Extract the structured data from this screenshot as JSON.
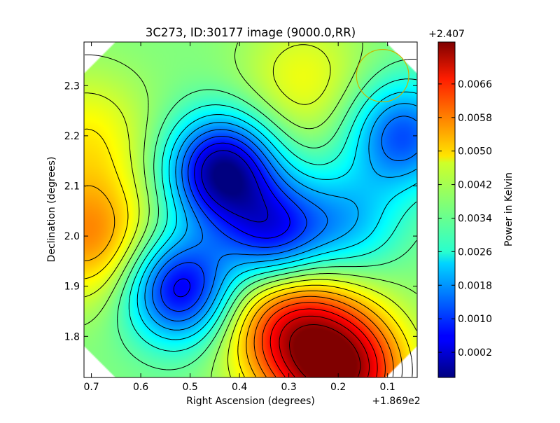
{
  "chart_data": {
    "type": "heatmap",
    "title": "3C273, ID:30177 image (9000.0,RR)",
    "xlabel": "Right Ascension (degrees)",
    "ylabel": "Declination (degrees)",
    "x_offset_label": "+1.869e2",
    "xlim": [
      0.715,
      0.04
    ],
    "ylim": [
      1.718,
      2.387
    ],
    "x_ticks": [
      0.7,
      0.6,
      0.5,
      0.4,
      0.3,
      0.2,
      0.1
    ],
    "x_tick_labels": [
      "0.7",
      "0.6",
      "0.5",
      "0.4",
      "0.3",
      "0.2",
      "0.1"
    ],
    "y_ticks": [
      1.8,
      1.9,
      2.0,
      2.1,
      2.2,
      2.3
    ],
    "y_tick_labels": [
      "1.8",
      "1.9",
      "2.0",
      "2.1",
      "2.2",
      "2.3"
    ],
    "colorbar": {
      "label": "Power in Kelvin",
      "offset_label": "+2.407",
      "range": [
        -0.0004,
        0.0076
      ],
      "ticks": [
        0.0066,
        0.0058,
        0.005,
        0.0042,
        0.0034,
        0.0026,
        0.0018,
        0.001,
        0.0002
      ],
      "tick_labels": [
        "0.0066",
        "0.0058",
        "0.0050",
        "0.0042",
        "0.0034",
        "0.0026",
        "0.0018",
        "0.0010",
        "0.0002"
      ],
      "colormap": "jet"
    },
    "features": [
      {
        "kind": "minimum",
        "ra": 0.435,
        "dec": 2.13,
        "value": -0.0003
      },
      {
        "kind": "minimum",
        "ra": 0.52,
        "dec": 1.895,
        "value": 0.0004
      },
      {
        "kind": "minimum",
        "ra": 0.33,
        "dec": 2.005,
        "value": 0.0008
      },
      {
        "kind": "minimum",
        "ra": 0.07,
        "dec": 2.2,
        "value": 0.0012
      },
      {
        "kind": "minimum",
        "ra": 0.18,
        "dec": 2.03,
        "value": 0.0022
      },
      {
        "kind": "maximum",
        "ra": 0.19,
        "dec": 1.73,
        "value": 0.0072
      },
      {
        "kind": "maximum",
        "ra": 0.3,
        "dec": 1.82,
        "value": 0.0062
      },
      {
        "kind": "maximum",
        "ra": 0.7,
        "dec": 2.0,
        "value": 0.0055
      },
      {
        "kind": "maximum",
        "ra": 0.27,
        "dec": 2.31,
        "value": 0.0045
      },
      {
        "kind": "maximum",
        "ra": 0.71,
        "dec": 2.2,
        "value": 0.0046
      }
    ],
    "beam_circle": {
      "ra": 0.11,
      "dec": 2.32,
      "radius_deg": 0.053,
      "color": "#c8b400"
    },
    "grid": false
  }
}
